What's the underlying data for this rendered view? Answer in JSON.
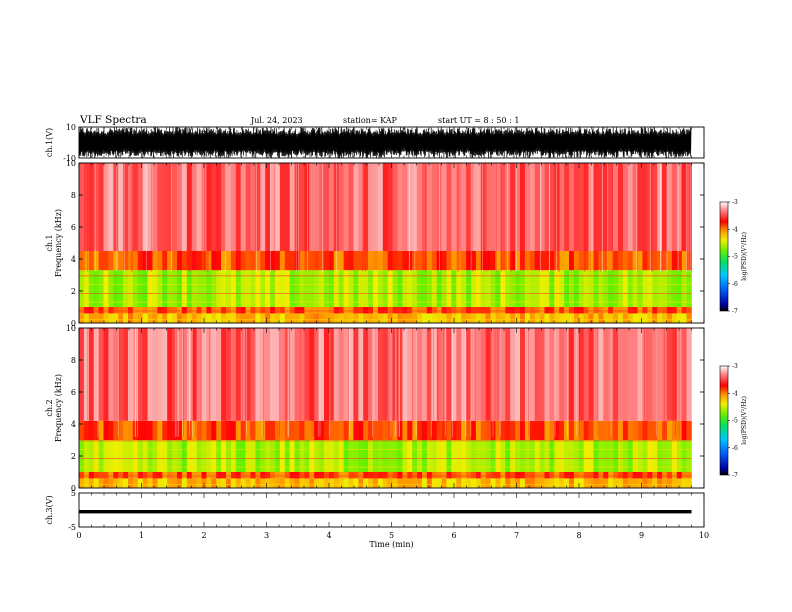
{
  "header": {
    "title": "VLF Spectra",
    "date": "Jul. 24, 2023",
    "station": "station= KAP",
    "start": "start  UT  =   8  : 50 : 1"
  },
  "chart_data": [
    {
      "type": "line",
      "panel": "ch1-waveform",
      "ylabel": "ch.1(V)",
      "ylim": [
        -10,
        10
      ],
      "ytick_labels": [
        "10",
        "-10"
      ],
      "xlim": [
        0,
        10
      ],
      "x_extent_min": [
        0,
        9.8
      ],
      "amplitude_V": [
        -10,
        10
      ]
    },
    {
      "type": "heatmap",
      "panel": "ch1-spectrogram",
      "ylabel": "ch.1\nFrequency  (kHz)",
      "ylim": [
        0,
        10
      ],
      "yticks": [
        0,
        2,
        4,
        6,
        8,
        10
      ],
      "xlim": [
        0,
        10
      ],
      "x_extent_min": [
        0,
        9.8
      ],
      "bands": [
        {
          "f_kHz": [
            0,
            0.6
          ],
          "log_psd": -4.2
        },
        {
          "f_kHz": [
            0.6,
            1.0
          ],
          "log_psd": -3.9
        },
        {
          "f_kHz": [
            1.0,
            3.3
          ],
          "log_psd": -4.6
        },
        {
          "f_kHz": [
            3.3,
            4.5
          ],
          "log_psd": -3.9
        },
        {
          "f_kHz": [
            4.5,
            10
          ],
          "log_psd": -3.4
        }
      ],
      "colorbar": {
        "range": [
          -7,
          -3
        ],
        "ticks": [
          -7,
          -6,
          -5,
          -4,
          -3
        ],
        "tick_labels": [
          "-7",
          "-6",
          "-5",
          "-4",
          "-3"
        ],
        "label": "log(PSD)(V²/Hz)"
      }
    },
    {
      "type": "heatmap",
      "panel": "ch2-spectrogram",
      "ylabel": "ch.2\nFrequency  (kHz)",
      "ylim": [
        0,
        10
      ],
      "yticks": [
        0,
        2,
        4,
        6,
        8,
        10
      ],
      "xlim": [
        0,
        10
      ],
      "x_extent_min": [
        0,
        9.8
      ],
      "bands": [
        {
          "f_kHz": [
            0,
            0.6
          ],
          "log_psd": -4.2
        },
        {
          "f_kHz": [
            0.6,
            1.0
          ],
          "log_psd": -3.9
        },
        {
          "f_kHz": [
            1.0,
            3.0
          ],
          "log_psd": -4.6
        },
        {
          "f_kHz": [
            3.0,
            4.2
          ],
          "log_psd": -3.9
        },
        {
          "f_kHz": [
            4.2,
            10
          ],
          "log_psd": -3.4
        }
      ],
      "colorbar": {
        "range": [
          -7,
          -3
        ],
        "ticks": [
          -7,
          -6,
          -5,
          -4,
          -3
        ],
        "tick_labels": [
          "-7",
          "-6",
          "-5",
          "-4",
          "-3"
        ],
        "label": "log(PSD)(V²/Hz)"
      }
    },
    {
      "type": "line",
      "panel": "ch3-waveform",
      "ylabel": "ch.3(V)",
      "ylim": [
        -5,
        5
      ],
      "ytick_labels": [
        "5",
        "-5"
      ],
      "xlim": [
        0,
        10
      ],
      "x_extent_min": [
        0,
        9.8
      ],
      "amplitude_V": [
        -1,
        0
      ],
      "xlabel": "Time  (min)",
      "xticks": [
        0,
        1,
        2,
        3,
        4,
        5,
        6,
        7,
        8,
        9,
        10
      ],
      "xtick_labels": [
        "0",
        "1",
        "2",
        "3",
        "4",
        "5",
        "6",
        "7",
        "8",
        "9",
        "10"
      ]
    }
  ]
}
